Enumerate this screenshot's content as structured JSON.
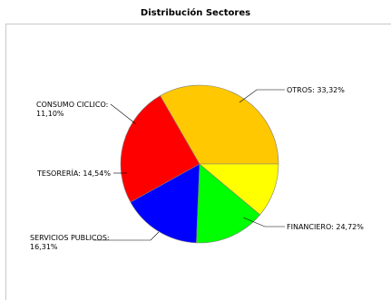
{
  "chart_data": {
    "type": "pie",
    "title": "Distribución Sectores",
    "slices": [
      {
        "label": "OTROS: 33,32%",
        "value": 33.32,
        "color": "#ffc800"
      },
      {
        "label": "FINANCIERO: 24,72%",
        "value": 24.72,
        "color": "#ff0000"
      },
      {
        "label_lines": [
          "SERVICIOS PUBLICOS:",
          "16,31%"
        ],
        "value": 16.31,
        "color": "#0000ff"
      },
      {
        "label": "TESORERÍA: 14,54%",
        "value": 14.54,
        "color": "#00ff00"
      },
      {
        "label_lines": [
          "CONSUMO CICLICO:",
          "11,10%"
        ],
        "value": 11.1,
        "color": "#ffff00"
      }
    ],
    "legend": "none",
    "grid": false
  }
}
